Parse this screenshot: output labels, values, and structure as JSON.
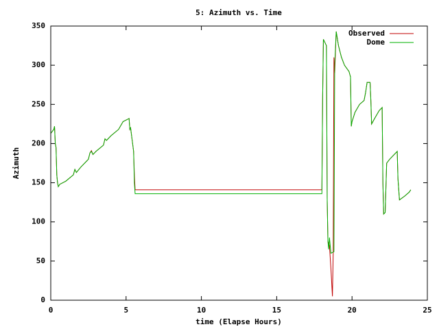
{
  "chart_data": {
    "type": "line",
    "title": "5: Azimuth vs. Time",
    "x_label": "time (Elapse Hours)",
    "y_label": "Azimuth",
    "xlim": [
      0,
      25
    ],
    "xticks": [
      0,
      5,
      10,
      15,
      20,
      25
    ],
    "ylim": [
      0,
      350
    ],
    "yticks": [
      0,
      50,
      100,
      150,
      200,
      250,
      300,
      350
    ],
    "grid": false,
    "legend": "top-right",
    "series": [
      {
        "name": "Observed",
        "color": "#c00000",
        "x": [
          0,
          0.2,
          0.25,
          0.3,
          0.35,
          0.4,
          0.45,
          0.5,
          0.6,
          1.0,
          1.5,
          1.6,
          1.7,
          2.0,
          2.5,
          2.6,
          2.7,
          2.8,
          3.0,
          3.5,
          3.6,
          3.7,
          4.0,
          4.5,
          4.8,
          5.0,
          5.2,
          5.25,
          5.3,
          5.5,
          5.55,
          5.6,
          18.0,
          18.05,
          18.1,
          18.3,
          18.35,
          18.4,
          18.5,
          18.6,
          18.7,
          18.75,
          18.8,
          18.85,
          18.95,
          19.1,
          19.3,
          19.5,
          19.8,
          19.9,
          19.95,
          20.0,
          20.2,
          20.5,
          20.8,
          20.9,
          21.0,
          21.2,
          21.25,
          21.3,
          21.5,
          21.8,
          22.0,
          22.05,
          22.1,
          22.2,
          22.3,
          22.5,
          23.0,
          23.05,
          23.15,
          23.5,
          23.8,
          23.9
        ],
        "values": [
          213,
          218,
          222,
          200,
          195,
          160,
          150,
          145,
          148,
          152,
          160,
          167,
          163,
          170,
          180,
          188,
          191,
          186,
          190,
          198,
          206,
          204,
          210,
          218,
          228,
          230,
          232,
          218,
          220,
          190,
          160,
          141,
          141,
          260,
          333,
          325,
          130,
          75,
          70,
          40,
          5,
          60,
          310,
          290,
          343,
          325,
          310,
          300,
          292,
          285,
          222,
          228,
          240,
          250,
          255,
          265,
          278,
          278,
          255,
          225,
          232,
          242,
          246,
          150,
          110,
          112,
          175,
          180,
          190,
          155,
          128,
          133,
          138,
          141
        ]
      },
      {
        "name": "Dome",
        "color": "#00b000",
        "x": [
          0,
          0.2,
          0.25,
          0.3,
          0.35,
          0.4,
          0.45,
          0.5,
          0.6,
          1.0,
          1.5,
          1.6,
          1.7,
          2.0,
          2.5,
          2.6,
          2.7,
          2.8,
          3.0,
          3.5,
          3.6,
          3.7,
          4.0,
          4.5,
          4.8,
          5.0,
          5.2,
          5.25,
          5.3,
          5.5,
          5.55,
          5.6,
          18.0,
          18.05,
          18.1,
          18.3,
          18.35,
          18.4,
          18.45,
          18.5,
          18.6,
          18.8,
          18.85,
          18.95,
          19.1,
          19.3,
          19.5,
          19.8,
          19.9,
          19.95,
          20.0,
          20.2,
          20.5,
          20.8,
          20.9,
          21.0,
          21.2,
          21.25,
          21.3,
          21.5,
          21.8,
          22.0,
          22.05,
          22.1,
          22.2,
          22.3,
          22.5,
          23.0,
          23.05,
          23.15,
          23.5,
          23.8,
          23.9
        ],
        "values": [
          213,
          218,
          222,
          200,
          195,
          160,
          150,
          145,
          148,
          152,
          160,
          167,
          163,
          170,
          180,
          188,
          190,
          186,
          190,
          198,
          206,
          204,
          210,
          218,
          228,
          230,
          232,
          218,
          220,
          190,
          150,
          136,
          136,
          260,
          333,
          325,
          130,
          75,
          65,
          80,
          60,
          62,
          300,
          343,
          325,
          310,
          300,
          292,
          285,
          222,
          228,
          240,
          250,
          255,
          265,
          278,
          278,
          255,
          225,
          232,
          242,
          246,
          150,
          110,
          112,
          175,
          180,
          190,
          155,
          128,
          133,
          138,
          141
        ]
      }
    ]
  }
}
